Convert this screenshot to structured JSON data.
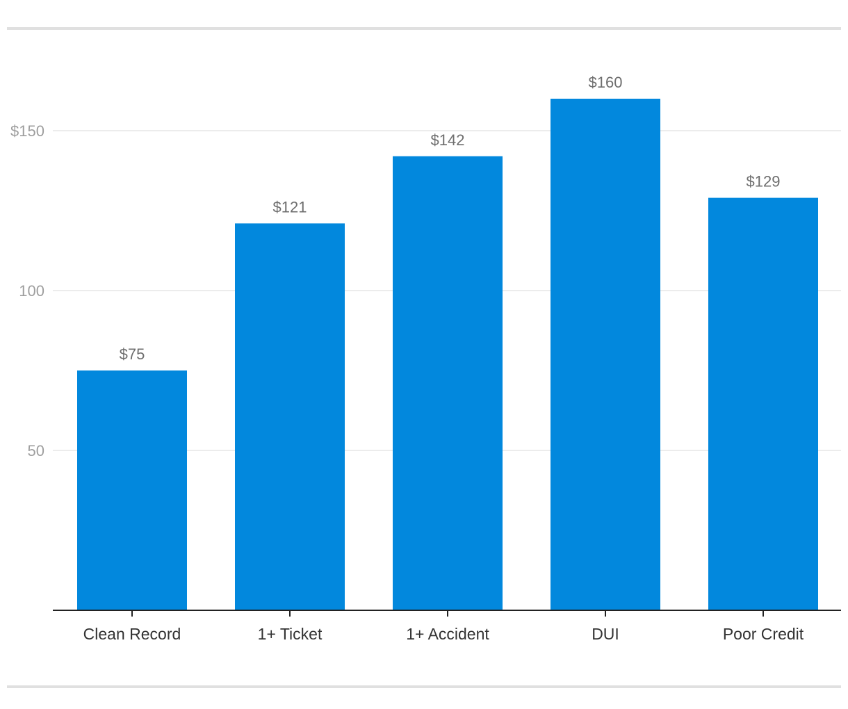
{
  "chart_data": {
    "type": "bar",
    "title": "",
    "xlabel": "",
    "ylabel": "",
    "categories": [
      "Clean Record",
      "1+ Ticket",
      "1+ Accident",
      "DUI",
      "Poor Credit"
    ],
    "values": [
      75,
      121,
      142,
      160,
      129
    ],
    "data_labels": [
      "$75",
      "$121",
      "$142",
      "$160",
      "$129"
    ],
    "ylim": [
      0,
      170
    ],
    "yticks": [
      {
        "value": 50,
        "label": "50"
      },
      {
        "value": 100,
        "label": "100"
      },
      {
        "value": 150,
        "label": "$150"
      }
    ],
    "grid": true,
    "legend": "none",
    "bar_color": "#0288dd"
  }
}
